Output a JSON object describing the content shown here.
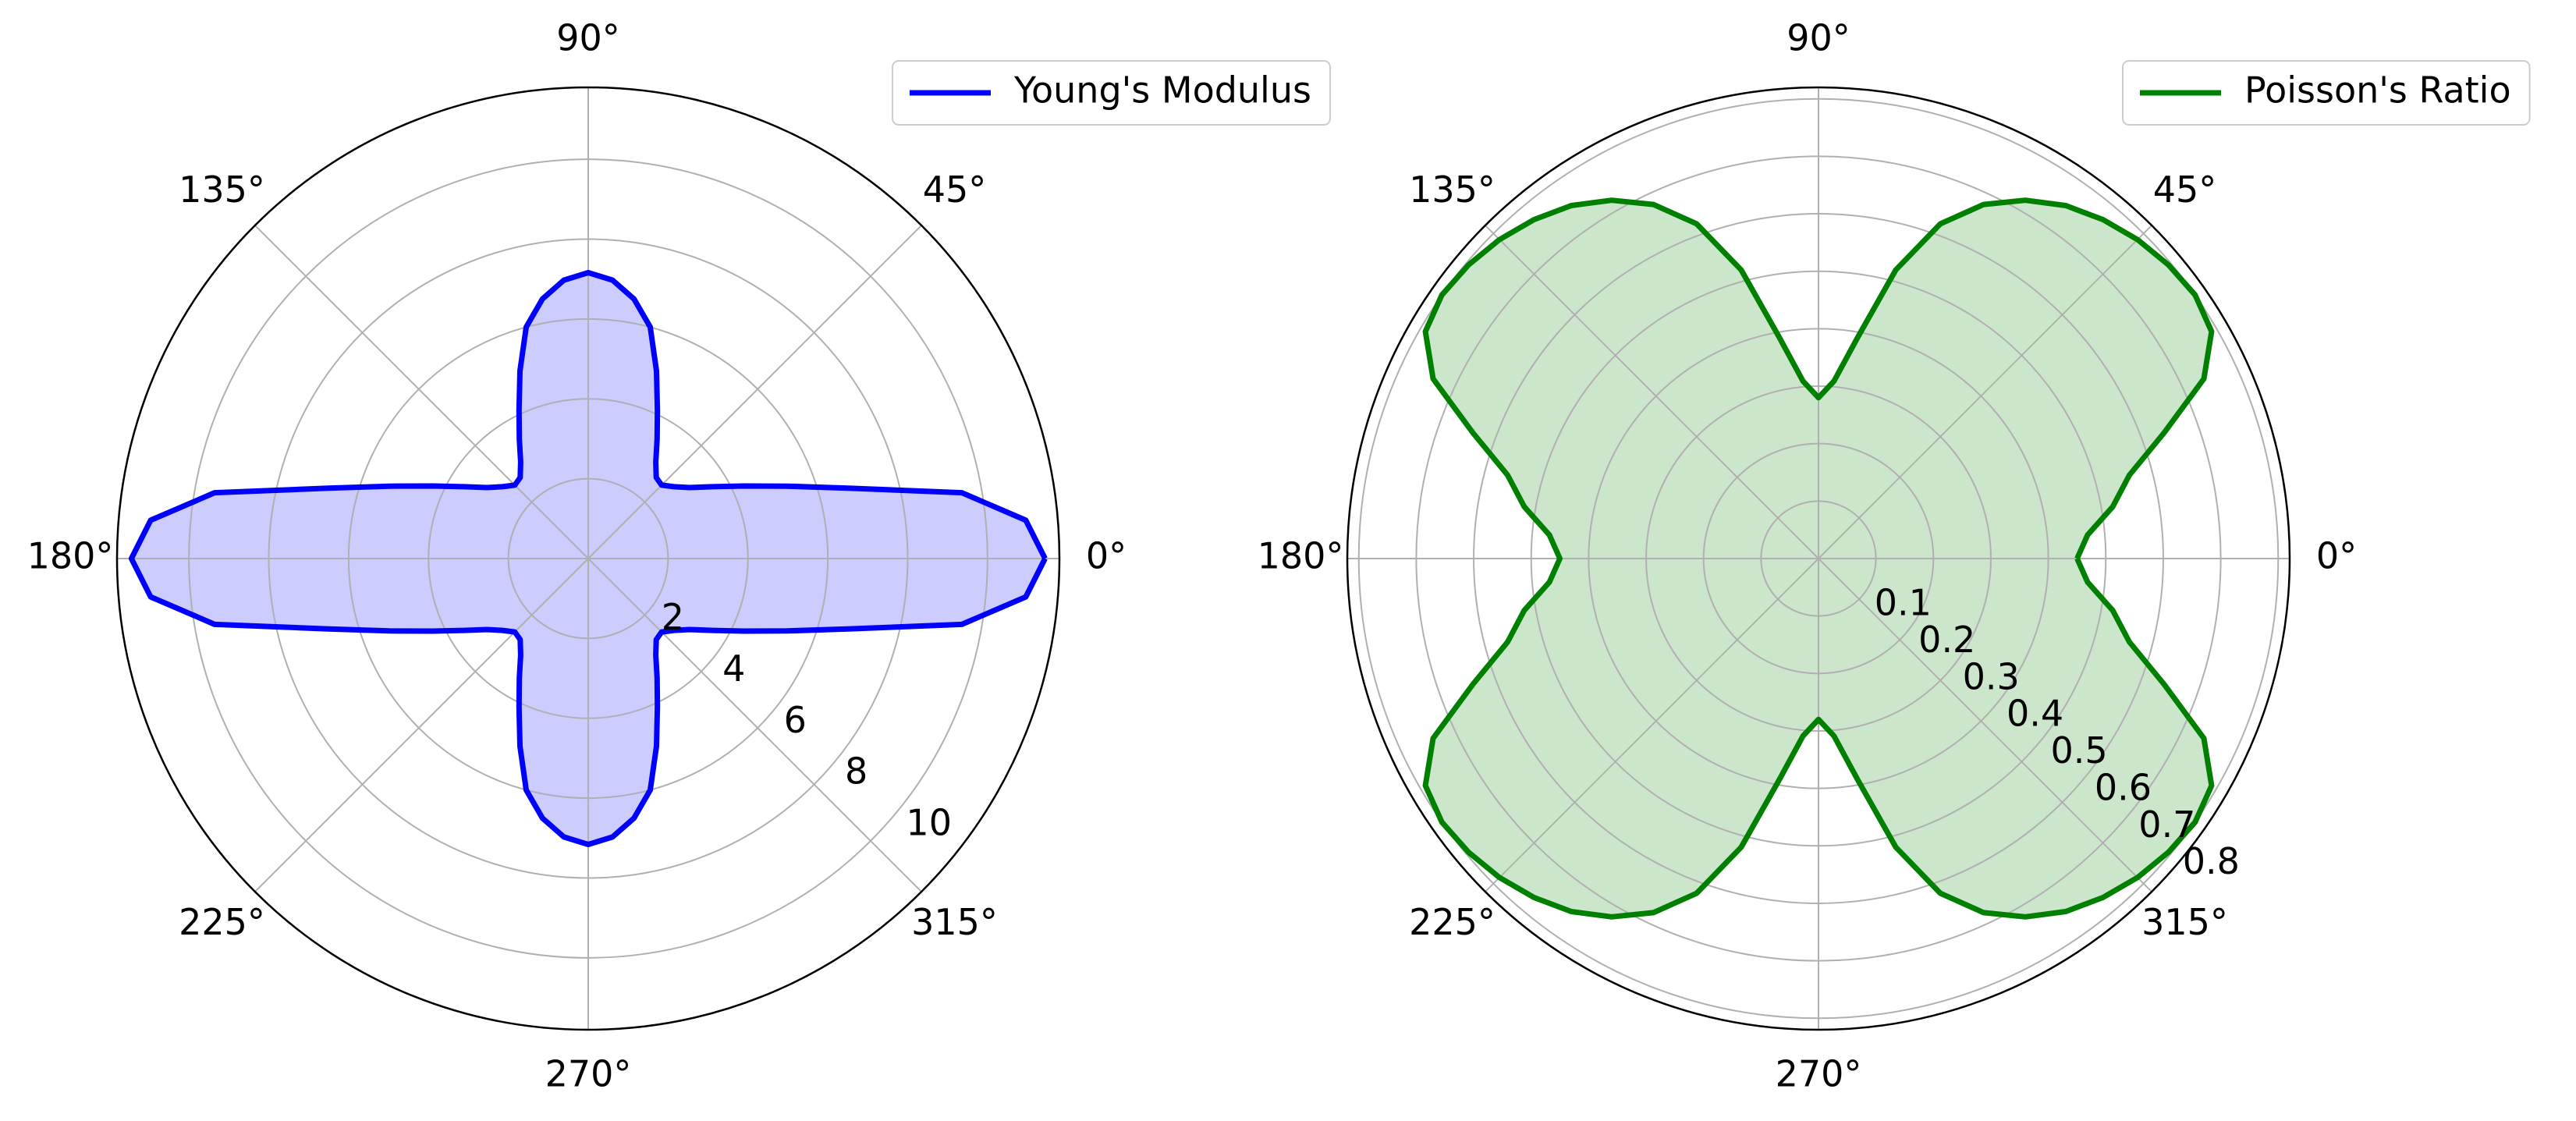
{
  "chart_data": [
    {
      "type": "polar",
      "x": [
        0,
        5,
        10,
        15,
        20,
        25,
        30,
        35,
        40,
        45,
        50,
        55,
        60,
        65,
        70,
        75,
        80,
        85,
        90,
        95,
        100,
        105,
        110,
        115,
        120,
        125,
        130,
        135,
        140,
        145,
        150,
        155,
        160,
        165,
        170,
        175,
        180,
        185,
        190,
        195,
        200,
        205,
        210,
        215,
        220,
        225,
        230,
        235,
        240,
        245,
        250,
        255,
        260,
        265,
        270,
        275,
        280,
        285,
        290,
        295,
        300,
        305,
        310,
        315,
        320,
        325,
        330,
        335,
        340,
        345,
        350,
        355,
        360
      ],
      "series": [
        {
          "name": "Young's Modulus",
          "color": "#0000ff",
          "fill_opacity": 0.2,
          "values": [
            11.44,
            11.0,
            9.5,
            6.8,
            5.3,
            4.3,
            3.6,
            3.1,
            2.8,
            2.6,
            2.65,
            2.95,
            3.45,
            4.1,
            5.0,
            6.0,
            6.6,
            7.0,
            7.16,
            7.0,
            6.6,
            6.0,
            5.0,
            4.1,
            3.45,
            2.95,
            2.65,
            2.6,
            2.8,
            3.1,
            3.6,
            4.3,
            5.3,
            6.8,
            9.5,
            11.0,
            11.44,
            11.0,
            9.5,
            6.8,
            5.3,
            4.3,
            3.6,
            3.1,
            2.8,
            2.6,
            2.65,
            2.95,
            3.45,
            4.1,
            5.0,
            6.0,
            6.6,
            7.0,
            7.16,
            7.0,
            6.6,
            6.0,
            5.0,
            4.1,
            3.45,
            2.95,
            2.65,
            2.6,
            2.8,
            3.1,
            3.6,
            4.3,
            5.3,
            6.8,
            9.5,
            11.0,
            11.44
          ]
        }
      ],
      "xticks": [
        {
          "value": 0,
          "label": "0°"
        },
        {
          "value": 45,
          "label": "45°"
        },
        {
          "value": 90,
          "label": "90°"
        },
        {
          "value": 135,
          "label": "135°"
        },
        {
          "value": 180,
          "label": "180°"
        },
        {
          "value": 225,
          "label": "225°"
        },
        {
          "value": 270,
          "label": "270°"
        },
        {
          "value": 315,
          "label": "315°"
        }
      ],
      "ylim": [
        0,
        11.8
      ],
      "yticks": [
        2,
        4,
        6,
        8,
        10
      ],
      "grid": true,
      "legend": "upper right"
    },
    {
      "type": "polar",
      "x": [
        0,
        5,
        10,
        15,
        20,
        25,
        30,
        35,
        40,
        45,
        50,
        55,
        60,
        65,
        70,
        75,
        80,
        85,
        90,
        95,
        100,
        105,
        110,
        115,
        120,
        125,
        130,
        135,
        140,
        145,
        150,
        155,
        160,
        165,
        170,
        175,
        180,
        185,
        190,
        195,
        200,
        205,
        210,
        215,
        220,
        225,
        230,
        235,
        240,
        245,
        250,
        255,
        260,
        265,
        270,
        275,
        280,
        285,
        290,
        295,
        300,
        305,
        310,
        315,
        320,
        325,
        330,
        335,
        340,
        345,
        350,
        355,
        360
      ],
      "series": [
        {
          "name": "Poisson's Ratio",
          "color": "#008000",
          "fill_opacity": 0.2,
          "values": [
            0.45,
            0.47,
            0.52,
            0.56,
            0.64,
            0.74,
            0.79,
            0.8,
            0.795,
            0.785,
            0.77,
            0.75,
            0.72,
            0.68,
            0.62,
            0.52,
            0.39,
            0.31,
            0.28,
            0.31,
            0.39,
            0.52,
            0.62,
            0.68,
            0.72,
            0.75,
            0.77,
            0.785,
            0.795,
            0.8,
            0.79,
            0.74,
            0.64,
            0.56,
            0.52,
            0.47,
            0.45,
            0.47,
            0.52,
            0.56,
            0.64,
            0.74,
            0.79,
            0.8,
            0.795,
            0.785,
            0.77,
            0.75,
            0.72,
            0.68,
            0.62,
            0.52,
            0.39,
            0.31,
            0.28,
            0.31,
            0.39,
            0.52,
            0.62,
            0.68,
            0.72,
            0.75,
            0.77,
            0.785,
            0.795,
            0.8,
            0.79,
            0.74,
            0.64,
            0.56,
            0.52,
            0.47,
            0.45
          ]
        }
      ],
      "xticks": [
        {
          "value": 0,
          "label": "0°"
        },
        {
          "value": 45,
          "label": "45°"
        },
        {
          "value": 90,
          "label": "90°"
        },
        {
          "value": 135,
          "label": "135°"
        },
        {
          "value": 180,
          "label": "180°"
        },
        {
          "value": 225,
          "label": "225°"
        },
        {
          "value": 270,
          "label": "270°"
        },
        {
          "value": 315,
          "label": "315°"
        }
      ],
      "ylim": [
        0,
        0.82
      ],
      "yticks": [
        0.1,
        0.2,
        0.3,
        0.4,
        0.5,
        0.6,
        0.7,
        0.8
      ],
      "grid": true,
      "legend": "upper right"
    }
  ]
}
